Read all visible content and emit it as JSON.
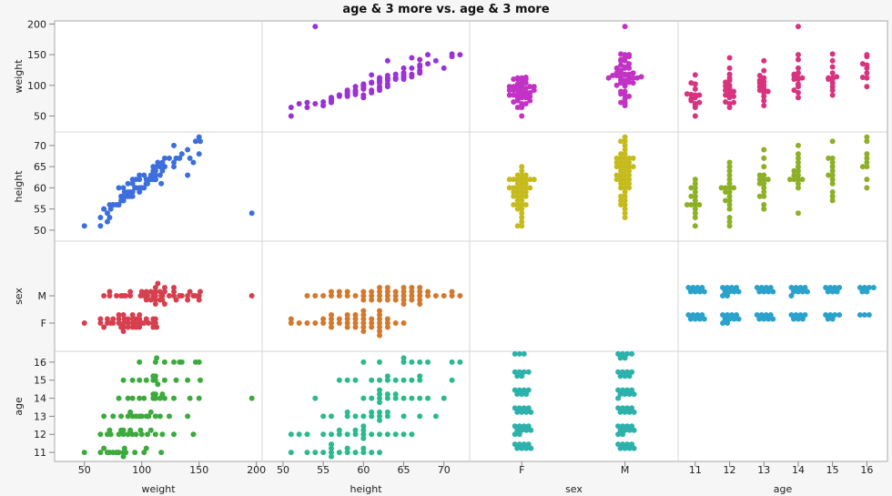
{
  "chart_data": {
    "type": "scatter",
    "title": "age & 3 more vs. age & 3 more",
    "layout": "scatterplot-matrix",
    "row_variables": [
      "weight",
      "height",
      "sex",
      "age"
    ],
    "column_variables": [
      "weight",
      "height",
      "sex",
      "age"
    ],
    "axes": {
      "weight": {
        "range": [
          24,
          205
        ],
        "ticks": [
          50,
          100,
          150,
          200
        ],
        "label": "weight"
      },
      "height": {
        "range": [
          47.4,
          73.2
        ],
        "ticks": [
          50,
          55,
          60,
          65,
          70
        ],
        "label": "height"
      },
      "sex": {
        "categories": [
          "F",
          "M"
        ],
        "label": "sex"
      },
      "age": {
        "range": [
          10.5,
          16.6
        ],
        "ticks": [
          11,
          12,
          13,
          14,
          15,
          16
        ],
        "label": "age"
      }
    },
    "cell_colors": {
      "weight|height": "#9a33d6",
      "weight|sex": "#c232c4",
      "weight|age": "#d8337f",
      "height|weight": "#3c6fdc",
      "height|sex": "#c6bb1c",
      "height|age": "#8cb026",
      "sex|weight": "#d6404e",
      "sex|height": "#d4782c",
      "sex|age": "#2ba2cc",
      "age|weight": "#3daa3d",
      "age|height": "#2bbb8a",
      "age|sex": "#2cb2aa"
    },
    "fields": [
      "age",
      "sex",
      "height",
      "weight"
    ],
    "records": [
      [
        11,
        "F",
        51,
        50
      ],
      [
        11,
        "F",
        53,
        64
      ],
      [
        11,
        "F",
        54,
        70
      ],
      [
        11,
        "F",
        56,
        75
      ],
      [
        11,
        "F",
        56,
        80
      ],
      [
        11,
        "F",
        58,
        84
      ],
      [
        11,
        "F",
        59,
        85
      ],
      [
        11,
        "F",
        60,
        94
      ],
      [
        11,
        "M",
        55,
        67
      ],
      [
        11,
        "M",
        56,
        72
      ],
      [
        11,
        "M",
        57,
        84
      ],
      [
        11,
        "M",
        58,
        86
      ],
      [
        11,
        "M",
        60,
        102
      ],
      [
        11,
        "M",
        61,
        117
      ],
      [
        11,
        "M",
        62,
        104
      ],
      [
        11,
        "M",
        56,
        78
      ],
      [
        12,
        "F",
        51,
        64
      ],
      [
        12,
        "F",
        52,
        70
      ],
      [
        12,
        "F",
        55,
        73
      ],
      [
        12,
        "F",
        56,
        80
      ],
      [
        12,
        "F",
        57,
        84
      ],
      [
        12,
        "F",
        58,
        88
      ],
      [
        12,
        "F",
        59,
        92
      ],
      [
        12,
        "F",
        60,
        95
      ],
      [
        12,
        "F",
        60,
        100
      ],
      [
        12,
        "F",
        60,
        84
      ],
      [
        12,
        "M",
        53,
        72
      ],
      [
        12,
        "M",
        57,
        82
      ],
      [
        12,
        "M",
        59,
        90
      ],
      [
        12,
        "M",
        60,
        99
      ],
      [
        12,
        "M",
        61,
        105
      ],
      [
        12,
        "M",
        62,
        112
      ],
      [
        12,
        "M",
        64,
        118
      ],
      [
        12,
        "M",
        65,
        128
      ],
      [
        12,
        "M",
        66,
        145
      ],
      [
        12,
        "M",
        63,
        108
      ],
      [
        13,
        "F",
        55,
        67
      ],
      [
        13,
        "F",
        56,
        75
      ],
      [
        13,
        "F",
        58,
        82
      ],
      [
        13,
        "F",
        59,
        88
      ],
      [
        13,
        "F",
        61,
        92
      ],
      [
        13,
        "F",
        62,
        95
      ],
      [
        13,
        "F",
        63,
        98
      ],
      [
        13,
        "F",
        62,
        106
      ],
      [
        13,
        "M",
        58,
        90
      ],
      [
        13,
        "M",
        60,
        100
      ],
      [
        13,
        "M",
        61,
        104
      ],
      [
        13,
        "M",
        62,
        108
      ],
      [
        13,
        "M",
        63,
        112
      ],
      [
        13,
        "M",
        65,
        116
      ],
      [
        13,
        "M",
        67,
        124
      ],
      [
        13,
        "M",
        69,
        140
      ],
      [
        14,
        "M",
        54,
        196
      ],
      [
        14,
        "F",
        60,
        80
      ],
      [
        14,
        "F",
        61,
        88
      ],
      [
        14,
        "F",
        62,
        92
      ],
      [
        14,
        "F",
        62,
        98
      ],
      [
        14,
        "F",
        63,
        102
      ],
      [
        14,
        "F",
        64,
        110
      ],
      [
        14,
        "F",
        62,
        110
      ],
      [
        14,
        "M",
        62,
        112
      ],
      [
        14,
        "M",
        63,
        116
      ],
      [
        14,
        "M",
        64,
        112
      ],
      [
        14,
        "M",
        65,
        120
      ],
      [
        14,
        "M",
        66,
        118
      ],
      [
        14,
        "M",
        67,
        142
      ],
      [
        14,
        "M",
        68,
        150
      ],
      [
        14,
        "M",
        70,
        128
      ],
      [
        15,
        "F",
        57,
        84
      ],
      [
        15,
        "F",
        58,
        92
      ],
      [
        15,
        "F",
        59,
        98
      ],
      [
        15,
        "F",
        61,
        104
      ],
      [
        15,
        "F",
        62,
        112
      ],
      [
        15,
        "F",
        63,
        110
      ],
      [
        15,
        "M",
        64,
        112
      ],
      [
        15,
        "M",
        65,
        110
      ],
      [
        15,
        "M",
        66,
        114
      ],
      [
        15,
        "M",
        67,
        120
      ],
      [
        15,
        "M",
        67,
        130
      ],
      [
        15,
        "M",
        71,
        151
      ],
      [
        15,
        "M",
        63,
        140
      ],
      [
        16,
        "F",
        60,
        98
      ],
      [
        16,
        "F",
        62,
        112
      ],
      [
        16,
        "F",
        65,
        113
      ],
      [
        16,
        "M",
        65,
        120
      ],
      [
        16,
        "M",
        66,
        128
      ],
      [
        16,
        "M",
        67,
        133
      ],
      [
        16,
        "M",
        68,
        135
      ],
      [
        16,
        "M",
        71,
        147
      ],
      [
        16,
        "M",
        72,
        150
      ]
    ]
  }
}
